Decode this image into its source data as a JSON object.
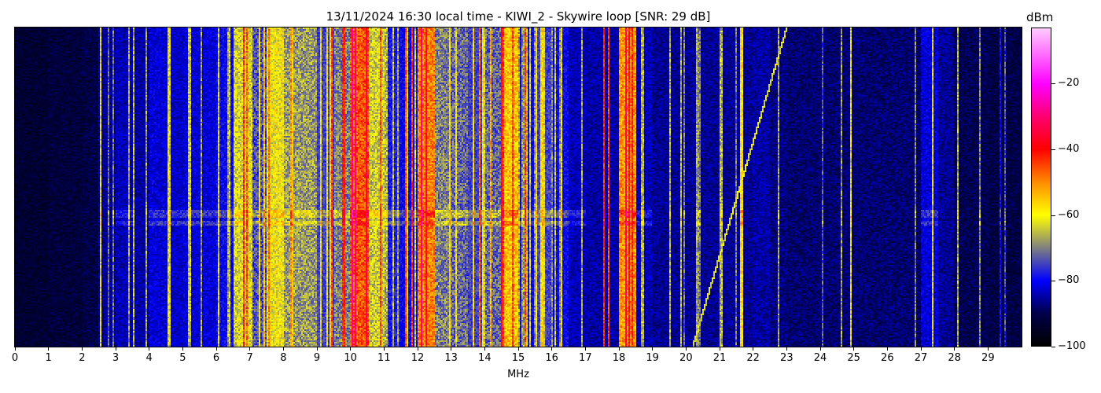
{
  "chart_data": {
    "type": "heatmap",
    "title": "13/11/2024 16:30 local time - KIWI_2 - Skywire loop [SNR: 29 dB]",
    "xlabel": "MHz",
    "ylabel": "",
    "xlim": [
      0,
      30
    ],
    "x_ticks": [
      "0",
      "1",
      "2",
      "3",
      "4",
      "5",
      "6",
      "7",
      "8",
      "9",
      "10",
      "11",
      "12",
      "13",
      "14",
      "15",
      "16",
      "17",
      "18",
      "19",
      "20",
      "21",
      "22",
      "23",
      "24",
      "25",
      "26",
      "27",
      "28",
      "29"
    ],
    "colorbar": {
      "label": "dBm",
      "range": [
        -100,
        -3
      ],
      "ticks": [
        "-20",
        "-40",
        "-60",
        "-80",
        "-100"
      ],
      "tick_values": [
        -20,
        -40,
        -60,
        -80,
        -100
      ],
      "colormap": [
        {
          "value": -100,
          "color": "#000000"
        },
        {
          "value": -90,
          "color": "#00004a"
        },
        {
          "value": -80,
          "color": "#0000ff"
        },
        {
          "value": -70,
          "color": "#808080"
        },
        {
          "value": -60,
          "color": "#ffff00"
        },
        {
          "value": -50,
          "color": "#ff8c00"
        },
        {
          "value": -40,
          "color": "#ff0000"
        },
        {
          "value": -30,
          "color": "#ff0070"
        },
        {
          "value": -20,
          "color": "#ff00ff"
        },
        {
          "value": -3,
          "color": "#ffccff"
        }
      ]
    },
    "frequency_profile_mhz_step": 0.5,
    "frequency_profile_dbm": [
      -93,
      -93,
      -92,
      -92,
      -91,
      -86,
      -84,
      -85,
      -82,
      -83,
      -82,
      -82,
      -80,
      -63,
      -74,
      -61,
      -68,
      -68,
      -75,
      -70,
      -46,
      -64,
      -78,
      -80,
      -49,
      -70,
      -72,
      -75,
      -72,
      -55,
      -80,
      -75,
      -80,
      -84,
      -85,
      -85,
      -51,
      -84,
      -86,
      -86,
      -86,
      -86,
      -86,
      -86,
      -85,
      -87,
      -88,
      -88,
      -88,
      -88,
      -88,
      -88,
      -88,
      -88,
      -82,
      -86,
      -90,
      -90,
      -91,
      -91
    ],
    "narrow_signals": [
      {
        "freq_mhz": 2.55,
        "dbm": -62
      },
      {
        "freq_mhz": 3.55,
        "dbm": -65
      },
      {
        "freq_mhz": 4.6,
        "dbm": -62
      },
      {
        "freq_mhz": 5.2,
        "dbm": -64
      },
      {
        "freq_mhz": 9.45,
        "dbm": -45
      },
      {
        "freq_mhz": 9.8,
        "dbm": -42
      },
      {
        "freq_mhz": 11.65,
        "dbm": -44
      },
      {
        "freq_mhz": 11.85,
        "dbm": -44
      },
      {
        "freq_mhz": 13.85,
        "dbm": -48
      },
      {
        "freq_mhz": 15.2,
        "dbm": -45
      },
      {
        "freq_mhz": 16.3,
        "dbm": -65
      },
      {
        "freq_mhz": 17.55,
        "dbm": -42
      },
      {
        "freq_mhz": 17.7,
        "dbm": -44
      },
      {
        "freq_mhz": 18.7,
        "dbm": -66
      },
      {
        "freq_mhz": 21.05,
        "dbm": -66
      },
      {
        "freq_mhz": 21.65,
        "dbm": -58
      },
      {
        "freq_mhz": 24.9,
        "dbm": -62
      },
      {
        "freq_mhz": 27.35,
        "dbm": -62
      },
      {
        "freq_mhz": 28.1,
        "dbm": -66
      }
    ],
    "sweep_trace": {
      "start_mhz": 20.2,
      "end_mhz": 23.0,
      "dbm": -62
    }
  }
}
